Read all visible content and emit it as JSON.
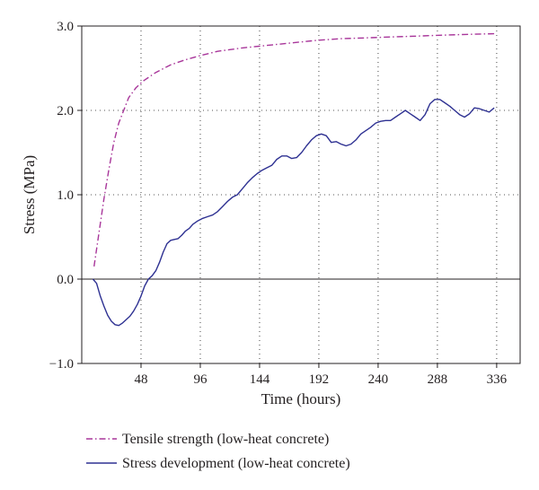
{
  "chart_data": {
    "type": "line",
    "xlabel": "Time (hours)",
    "ylabel": "Stress (MPa)",
    "xlim": [
      0,
      355
    ],
    "ylim": [
      -1.0,
      3.0
    ],
    "x_ticks": [
      48,
      96,
      144,
      192,
      240,
      288,
      336
    ],
    "x_tick_labels": [
      "48",
      "96",
      "144",
      "192",
      "240",
      "288",
      "336"
    ],
    "y_ticks": [
      -1.0,
      0.0,
      1.0,
      2.0,
      3.0
    ],
    "y_tick_labels": [
      "−1.0",
      "0.0",
      "1.0",
      "2.0",
      "3.0"
    ],
    "grid": true,
    "legend_position": "bottom",
    "series": [
      {
        "name": "Tensile strength (low-heat concrete)",
        "color": "#a8369a",
        "line_style": "dash-dot",
        "x": [
          10,
          14,
          18,
          22,
          26,
          30,
          34,
          38,
          44,
          50,
          60,
          72,
          84,
          96,
          110,
          130,
          150,
          170,
          190,
          210,
          230,
          250,
          270,
          290,
          310,
          336
        ],
        "y": [
          0.15,
          0.55,
          0.95,
          1.3,
          1.62,
          1.85,
          2.0,
          2.15,
          2.27,
          2.35,
          2.45,
          2.54,
          2.6,
          2.65,
          2.7,
          2.74,
          2.77,
          2.8,
          2.83,
          2.85,
          2.86,
          2.87,
          2.88,
          2.89,
          2.9,
          2.91
        ]
      },
      {
        "name": "Stress development (low-heat concrete)",
        "color": "#2e3192",
        "line_style": "solid",
        "x": [
          9,
          12,
          15,
          18,
          21,
          24,
          27,
          30,
          33,
          36,
          39,
          42,
          45,
          48,
          51,
          54,
          57,
          60,
          63,
          66,
          69,
          72,
          75,
          78,
          81,
          84,
          87,
          90,
          94,
          98,
          102,
          106,
          110,
          114,
          118,
          122,
          126,
          130,
          134,
          138,
          142,
          146,
          150,
          154,
          158,
          162,
          166,
          170,
          174,
          178,
          182,
          186,
          190,
          194,
          198,
          202,
          206,
          210,
          214,
          218,
          222,
          226,
          230,
          234,
          238,
          242,
          246,
          250,
          254,
          258,
          262,
          266,
          270,
          274,
          278,
          282,
          286,
          290,
          294,
          298,
          302,
          306,
          310,
          314,
          318,
          322,
          326,
          330,
          334
        ],
        "y": [
          0.0,
          -0.05,
          -0.2,
          -0.32,
          -0.43,
          -0.5,
          -0.54,
          -0.55,
          -0.52,
          -0.48,
          -0.44,
          -0.38,
          -0.3,
          -0.2,
          -0.08,
          0.0,
          0.04,
          0.1,
          0.2,
          0.32,
          0.42,
          0.46,
          0.47,
          0.48,
          0.52,
          0.57,
          0.6,
          0.65,
          0.69,
          0.72,
          0.74,
          0.76,
          0.8,
          0.86,
          0.92,
          0.97,
          1.0,
          1.07,
          1.14,
          1.2,
          1.25,
          1.29,
          1.32,
          1.35,
          1.42,
          1.46,
          1.46,
          1.43,
          1.44,
          1.5,
          1.58,
          1.65,
          1.7,
          1.72,
          1.7,
          1.62,
          1.63,
          1.6,
          1.58,
          1.6,
          1.65,
          1.72,
          1.76,
          1.8,
          1.85,
          1.87,
          1.88,
          1.88,
          1.92,
          1.96,
          2.0,
          1.96,
          1.92,
          1.88,
          1.95,
          2.08,
          2.13,
          2.13,
          2.09,
          2.05,
          2.0,
          1.95,
          1.92,
          1.96,
          2.03,
          2.02,
          2.0,
          1.98,
          2.03
        ]
      }
    ]
  }
}
